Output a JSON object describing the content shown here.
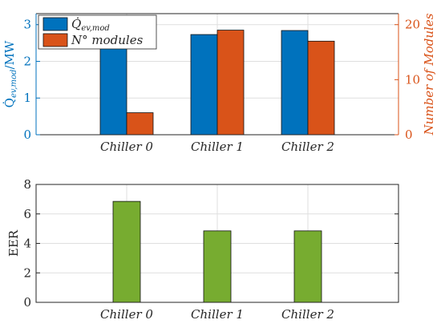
{
  "chart_data": [
    {
      "type": "bar",
      "categories": [
        "Chiller 0",
        "Chiller 1",
        "Chiller 2"
      ],
      "series": [
        {
          "name": "Q̇ev,mod",
          "axis": "left",
          "color": "#0072BD",
          "values": [
            2.37,
            2.73,
            2.84
          ]
        },
        {
          "name": "N° modules",
          "axis": "right",
          "color": "#D95319",
          "values": [
            4,
            19,
            17
          ]
        }
      ],
      "ylabel_left": "Q̇ev,mod/MW",
      "ylabel_right": "Number of Modules",
      "ylim_left": [
        0,
        3.3
      ],
      "yticks_left": [
        0,
        1,
        2,
        3
      ],
      "ylim_right": [
        0,
        22
      ],
      "yticks_right": [
        0,
        10,
        20
      ],
      "legend_position": "top-left",
      "grid": true
    },
    {
      "type": "bar",
      "categories": [
        "Chiller 0",
        "Chiller 1",
        "Chiller 2"
      ],
      "series": [
        {
          "color": "#77AC30",
          "values": [
            6.85,
            4.85,
            4.85
          ]
        }
      ],
      "ylabel": "EER",
      "ylim": [
        0,
        8
      ],
      "yticks": [
        0,
        2,
        4,
        6,
        8
      ],
      "grid": true
    }
  ],
  "colors": {
    "left_axis": "#0072BD",
    "right_axis": "#D95319",
    "axis": "#262626",
    "grid": "#dfdfdf"
  }
}
